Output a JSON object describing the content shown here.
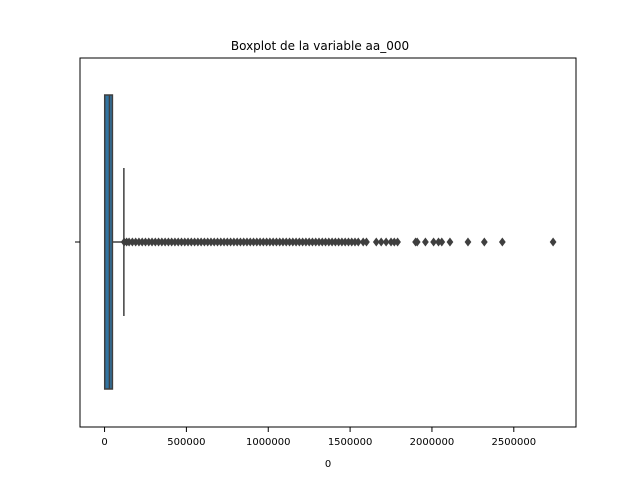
{
  "chart_data": {
    "type": "boxplot",
    "title": "Boxplot de la variable aa_000",
    "xlabel": "0",
    "ylabel": "",
    "xlim": [
      -150000,
      2880000
    ],
    "xticks": [
      0,
      500000,
      1000000,
      1500000,
      2000000,
      2500000
    ],
    "xtick_labels": [
      "0",
      "500000",
      "1000000",
      "1500000",
      "2000000",
      "2500000"
    ],
    "grid": false,
    "box": {
      "min": 0,
      "q1": 1000,
      "median": 30000,
      "q3": 48000,
      "whisker_low": 0,
      "whisker_high": 118000,
      "fill": "#3274a1",
      "edge": "#3f3f3f"
    },
    "outliers": [
      120000,
      135000,
      150000,
      170000,
      190000,
      210000,
      230000,
      250000,
      270000,
      290000,
      310000,
      330000,
      350000,
      370000,
      390000,
      410000,
      430000,
      450000,
      470000,
      490000,
      510000,
      530000,
      550000,
      570000,
      590000,
      610000,
      630000,
      650000,
      670000,
      690000,
      710000,
      730000,
      750000,
      770000,
      790000,
      810000,
      830000,
      850000,
      870000,
      890000,
      910000,
      930000,
      950000,
      970000,
      990000,
      1010000,
      1030000,
      1050000,
      1070000,
      1090000,
      1110000,
      1130000,
      1150000,
      1170000,
      1190000,
      1210000,
      1230000,
      1250000,
      1270000,
      1290000,
      1310000,
      1330000,
      1350000,
      1370000,
      1390000,
      1410000,
      1430000,
      1450000,
      1470000,
      1490000,
      1510000,
      1530000,
      1550000,
      1580000,
      1600000,
      1660000,
      1690000,
      1720000,
      1750000,
      1770000,
      1790000,
      1900000,
      1910000,
      1960000,
      2010000,
      2040000,
      2060000,
      2110000,
      2220000,
      2320000,
      2430000,
      2740000
    ],
    "outlier_color": "#3f3f3f"
  }
}
